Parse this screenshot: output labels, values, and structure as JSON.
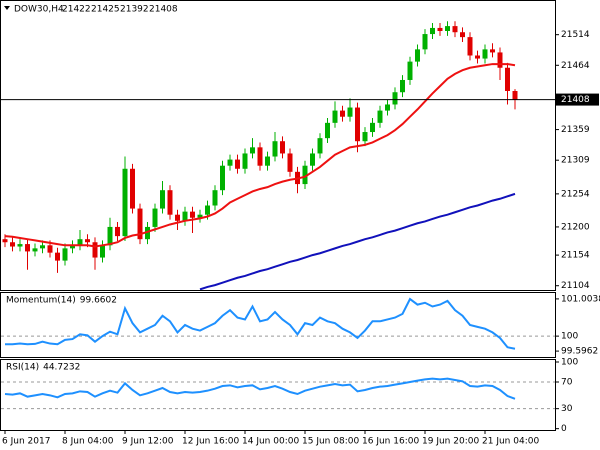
{
  "chart_data": [
    {
      "type": "candlestick",
      "title": "DOW30,H4",
      "categories": [
        "6 Jun 2017",
        null,
        null,
        null,
        null,
        null,
        null,
        null,
        "8 Jun 04:00",
        null,
        null,
        null,
        null,
        null,
        null,
        null,
        "9 Jun 12:00",
        null,
        null,
        null,
        null,
        null,
        null,
        null,
        "12 Jun 16:00",
        null,
        null,
        null,
        null,
        null,
        null,
        null,
        "14 Jun 00:00",
        null,
        null,
        null,
        null,
        null,
        null,
        null,
        "15 Jun 08:00",
        null,
        null,
        null,
        null,
        null,
        null,
        null,
        "16 Jun 16:00",
        null,
        null,
        null,
        null,
        null,
        null,
        null,
        "19 Jun 20:00",
        null,
        null,
        null,
        null,
        null,
        null,
        null,
        "21 Jun 04:00",
        null,
        null,
        null,
        null
      ],
      "open": [
        21180,
        21175,
        21168,
        21172,
        21160,
        21165,
        21170,
        21158,
        21145,
        21165,
        21170,
        21180,
        21175,
        21150,
        21170,
        21200,
        21185,
        21295,
        21230,
        21180,
        21200,
        21230,
        21260,
        21220,
        21210,
        21225,
        21215,
        21220,
        21235,
        21260,
        21300,
        21310,
        21295,
        21320,
        21330,
        21300,
        21315,
        21340,
        21320,
        21290,
        21270,
        21300,
        21320,
        21345,
        21370,
        21390,
        21380,
        21395,
        21340,
        21355,
        21370,
        21390,
        21400,
        21420,
        21440,
        21470,
        21490,
        21515,
        21525,
        21520,
        21528,
        21518,
        21510,
        21480,
        21475,
        21490,
        21485,
        21460,
        21422
      ],
      "high": [
        21188,
        21183,
        21180,
        21180,
        21173,
        21178,
        21178,
        21166,
        21173,
        21178,
        21195,
        21188,
        21183,
        21178,
        21215,
        21208,
        21315,
        21303,
        21238,
        21208,
        21238,
        21275,
        21268,
        21228,
        21233,
        21233,
        21228,
        21243,
        21268,
        21308,
        21318,
        21318,
        21328,
        21345,
        21338,
        21323,
        21355,
        21348,
        21328,
        21298,
        21308,
        21328,
        21353,
        21378,
        21405,
        21398,
        21410,
        21403,
        21363,
        21378,
        21398,
        21408,
        21428,
        21448,
        21478,
        21498,
        21523,
        21533,
        21533,
        21536,
        21536,
        21526,
        21518,
        21488,
        21498,
        21500,
        21493,
        21468,
        21425
      ],
      "low": [
        21167,
        21160,
        21160,
        21130,
        21152,
        21157,
        21150,
        21125,
        21137,
        21157,
        21162,
        21167,
        21130,
        21142,
        21162,
        21177,
        21177,
        21222,
        21172,
        21172,
        21192,
        21222,
        21212,
        21195,
        21202,
        21190,
        21207,
        21212,
        21227,
        21252,
        21292,
        21287,
        21287,
        21312,
        21292,
        21292,
        21307,
        21312,
        21282,
        21255,
        21262,
        21292,
        21312,
        21337,
        21362,
        21372,
        21372,
        21322,
        21332,
        21347,
        21362,
        21382,
        21392,
        21412,
        21432,
        21462,
        21482,
        21507,
        21512,
        21512,
        21510,
        21502,
        21472,
        21467,
        21467,
        21477,
        21440,
        21400,
        21392
      ],
      "close": [
        21175,
        21168,
        21172,
        21160,
        21165,
        21170,
        21158,
        21145,
        21165,
        21170,
        21180,
        21175,
        21150,
        21170,
        21200,
        21185,
        21295,
        21230,
        21180,
        21200,
        21230,
        21260,
        21220,
        21210,
        21225,
        21215,
        21220,
        21235,
        21260,
        21300,
        21310,
        21295,
        21320,
        21330,
        21300,
        21315,
        21340,
        21320,
        21290,
        21270,
        21300,
        21320,
        21345,
        21370,
        21390,
        21380,
        21395,
        21340,
        21355,
        21370,
        21390,
        21400,
        21420,
        21440,
        21470,
        21490,
        21515,
        21525,
        21520,
        21528,
        21518,
        21510,
        21480,
        21475,
        21490,
        21485,
        21460,
        21422,
        21408
      ],
      "up_color": "#00b000",
      "down_color": "#e00000",
      "series": [
        {
          "color": "#ee1111",
          "values": [
            21185,
            21184,
            21182,
            21180,
            21178,
            21176,
            21174,
            21172,
            21170,
            21170,
            21170,
            21170,
            21168,
            21170,
            21172,
            21175,
            21182,
            21186,
            21188,
            21192,
            21196,
            21200,
            21204,
            21207,
            21210,
            21212,
            21214,
            21217,
            21222,
            21230,
            21240,
            21246,
            21252,
            21258,
            21262,
            21265,
            21270,
            21274,
            21277,
            21279,
            21282,
            21290,
            21298,
            21308,
            21318,
            21324,
            21330,
            21332,
            21334,
            21338,
            21344,
            21350,
            21358,
            21368,
            21380,
            21392,
            21405,
            21418,
            21430,
            21442,
            21450,
            21456,
            21460,
            21462,
            21464,
            21466,
            21466,
            21466,
            21464
          ]
        },
        {
          "color": "#1111bb",
          "values": [
            null,
            null,
            null,
            null,
            null,
            null,
            null,
            null,
            null,
            null,
            null,
            null,
            null,
            null,
            null,
            null,
            null,
            null,
            null,
            null,
            null,
            null,
            null,
            null,
            null,
            null,
            21098,
            21102,
            21105,
            21109,
            21113,
            21117,
            21120,
            21124,
            21128,
            21131,
            21135,
            21139,
            21143,
            21146,
            21150,
            21154,
            21157,
            21161,
            21165,
            21169,
            21172,
            21176,
            21180,
            21183,
            21187,
            21191,
            21194,
            21198,
            21202,
            21206,
            21209,
            21213,
            21217,
            21220,
            21224,
            21228,
            21232,
            21235,
            21239,
            21243,
            21246,
            21250,
            21254
          ]
        }
      ],
      "ylim": [
        21097,
        21569
      ],
      "yticks": [
        21514,
        21464,
        21359,
        21309,
        21254,
        21200,
        21154,
        21104
      ]
    },
    {
      "type": "line",
      "title": "Momentum(14)",
      "color": "#1e90ff",
      "values": [
        99.78,
        99.78,
        99.8,
        99.78,
        99.79,
        99.85,
        99.8,
        99.78,
        99.9,
        99.92,
        100.05,
        100.02,
        99.85,
        100.0,
        100.12,
        100.05,
        100.75,
        100.35,
        100.1,
        100.2,
        100.3,
        100.55,
        100.4,
        100.1,
        100.3,
        100.2,
        100.15,
        100.25,
        100.35,
        100.55,
        100.7,
        100.5,
        100.45,
        100.8,
        100.4,
        100.45,
        100.65,
        100.45,
        100.3,
        100.05,
        100.35,
        100.3,
        100.5,
        100.4,
        100.35,
        100.2,
        100.1,
        99.95,
        100.15,
        100.4,
        100.4,
        100.45,
        100.5,
        100.6,
        101.0,
        100.85,
        100.9,
        100.8,
        100.85,
        100.95,
        100.7,
        100.55,
        100.3,
        100.25,
        100.2,
        100.1,
        99.95,
        99.7,
        99.6602
      ],
      "ylim": [
        99.437,
        101.163
      ],
      "yticks": [
        101.0038,
        100,
        99.5962
      ],
      "levels": [
        100
      ]
    },
    {
      "type": "line",
      "title": "RSI(14)",
      "color": "#1e90ff",
      "values": [
        52,
        51,
        53,
        48,
        50,
        52,
        50,
        47,
        52,
        53,
        56,
        55,
        48,
        53,
        57,
        54,
        68,
        58,
        50,
        53,
        57,
        61,
        55,
        53,
        55,
        54,
        55,
        57,
        60,
        64,
        65,
        62,
        64,
        65,
        59,
        61,
        64,
        60,
        55,
        52,
        57,
        60,
        63,
        65,
        67,
        65,
        66,
        56,
        58,
        61,
        63,
        64,
        66,
        68,
        70,
        72,
        74,
        75,
        74,
        75,
        73,
        71,
        64,
        63,
        65,
        64,
        58,
        49,
        44.7232
      ],
      "ylim": [
        -2,
        103
      ],
      "yticks": [
        100,
        70,
        30,
        0
      ],
      "levels": [
        70,
        30
      ]
    }
  ]
}
